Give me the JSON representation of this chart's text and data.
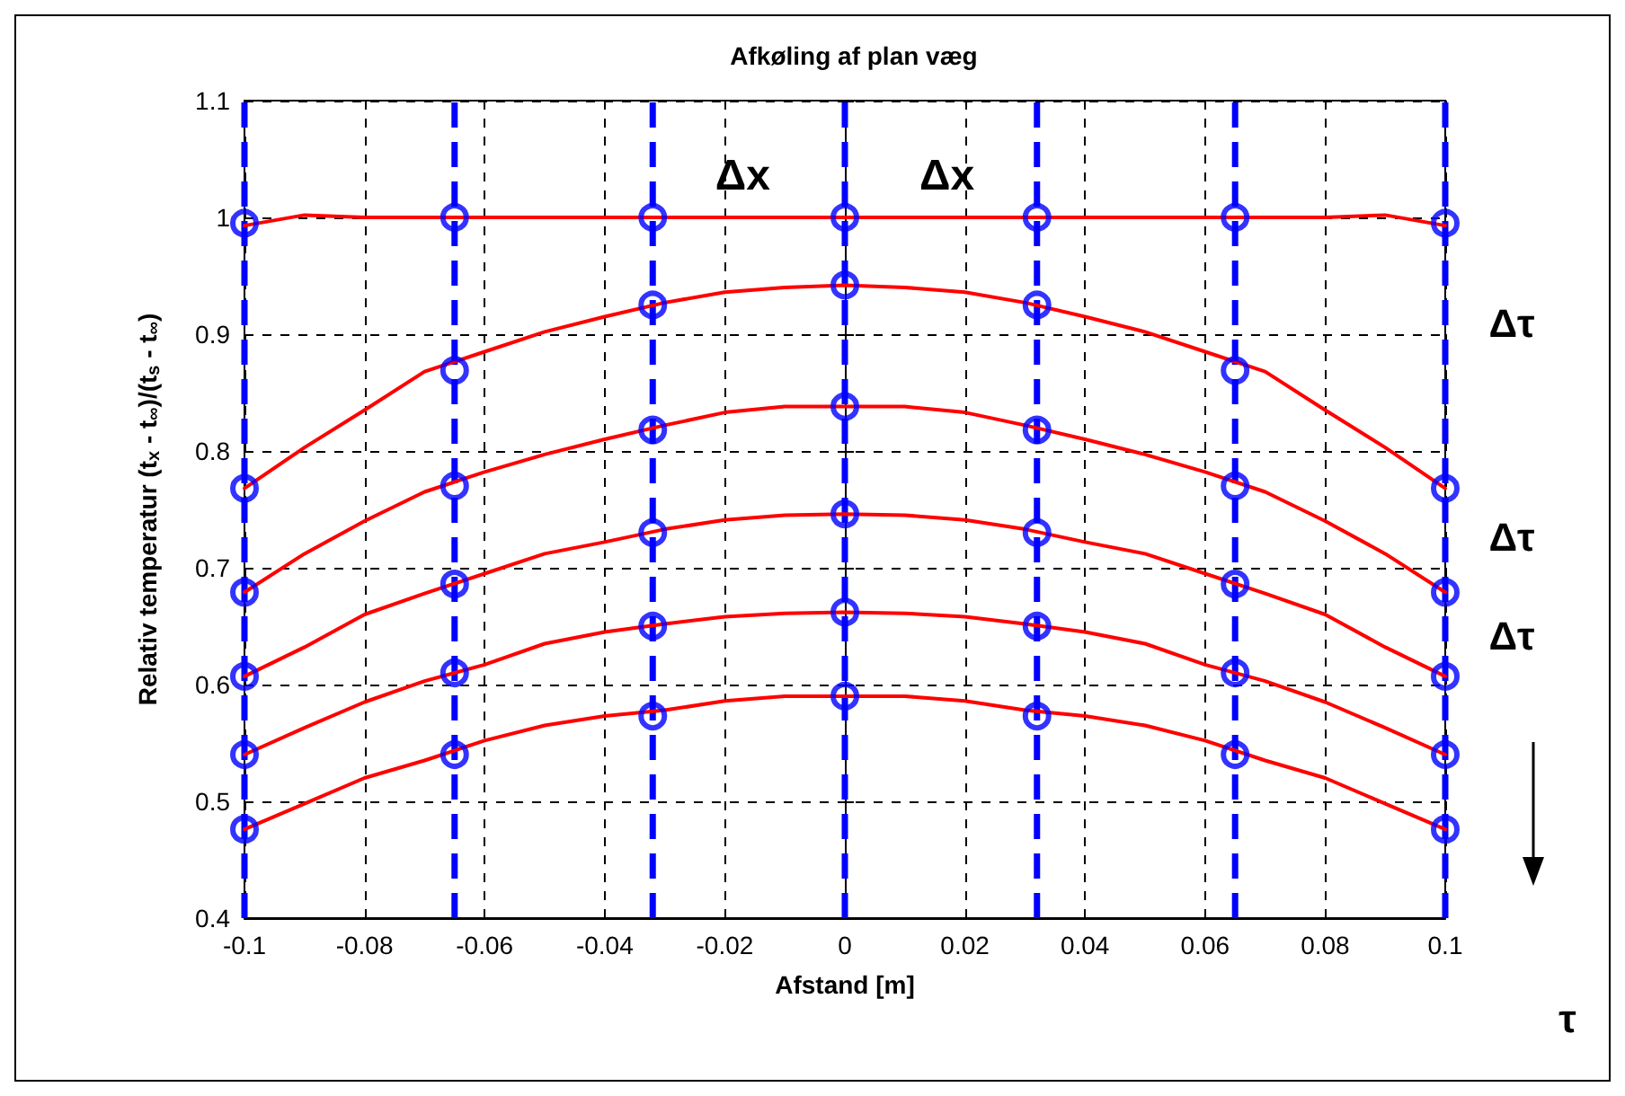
{
  "chart_data": {
    "type": "line",
    "title": "Afkøling af plan væg",
    "xlabel": "Afstand [m]",
    "ylabel": "Relativ temperatur (t$_{x}$ - t$_{∞}$)/(t$_{s}$ - t$_{∞}$)",
    "x": [
      -0.1,
      -0.09,
      -0.08,
      -0.07,
      -0.06,
      -0.05,
      -0.04,
      -0.03,
      -0.02,
      -0.01,
      0,
      0.01,
      0.02,
      0.03,
      0.04,
      0.05,
      0.06,
      0.07,
      0.08,
      0.09,
      0.1
    ],
    "series": [
      {
        "color": "#ff0000",
        "values": [
          0.993,
          1.002,
          1.0,
          1.0,
          1.0,
          1.0,
          1.0,
          1.0,
          1.0,
          1.0,
          1.0,
          1.0,
          1.0,
          1.0,
          1.0,
          1.0,
          1.0,
          1.0,
          1.0,
          1.002,
          0.993
        ]
      },
      {
        "color": "#ff0000",
        "values": [
          0.768,
          0.803,
          0.835,
          0.868,
          0.885,
          0.902,
          0.915,
          0.927,
          0.936,
          0.94,
          0.942,
          0.94,
          0.936,
          0.927,
          0.915,
          0.902,
          0.885,
          0.868,
          0.835,
          0.803,
          0.768
        ]
      },
      {
        "color": "#ff0000",
        "values": [
          0.679,
          0.712,
          0.74,
          0.765,
          0.782,
          0.797,
          0.81,
          0.822,
          0.833,
          0.838,
          0.838,
          0.838,
          0.833,
          0.822,
          0.81,
          0.797,
          0.782,
          0.765,
          0.74,
          0.712,
          0.679
        ]
      },
      {
        "color": "#ff0000",
        "values": [
          0.607,
          0.632,
          0.66,
          0.678,
          0.695,
          0.712,
          0.722,
          0.733,
          0.741,
          0.745,
          0.746,
          0.745,
          0.741,
          0.733,
          0.722,
          0.712,
          0.695,
          0.678,
          0.66,
          0.632,
          0.607
        ]
      },
      {
        "color": "#ff0000",
        "values": [
          0.54,
          0.563,
          0.585,
          0.603,
          0.617,
          0.635,
          0.645,
          0.652,
          0.658,
          0.661,
          0.662,
          0.661,
          0.658,
          0.652,
          0.645,
          0.635,
          0.617,
          0.603,
          0.585,
          0.563,
          0.54
        ]
      },
      {
        "color": "#ff0000",
        "values": [
          0.476,
          0.498,
          0.52,
          0.535,
          0.552,
          0.565,
          0.573,
          0.578,
          0.586,
          0.59,
          0.59,
          0.59,
          0.586,
          0.578,
          0.573,
          0.565,
          0.552,
          0.535,
          0.52,
          0.498,
          0.476
        ]
      },
      {
        "type": "scatter",
        "color": "#0000ff",
        "marker": "circle",
        "x": [
          -0.1,
          -0.065,
          -0.032,
          0,
          0.032,
          0.065,
          0.1,
          -0.1,
          -0.065,
          -0.032,
          0,
          0.032,
          0.065,
          0.1,
          -0.1,
          -0.065,
          -0.032,
          0,
          0.032,
          0.065,
          0.1,
          -0.1,
          -0.065,
          -0.032,
          0,
          0.032,
          0.065,
          0.1,
          -0.1,
          -0.065,
          -0.032,
          0,
          0.032,
          0.065,
          0.1,
          -0.1,
          -0.065,
          -0.032,
          0,
          0.032,
          0.065,
          0.1
        ],
        "values": [
          0.995,
          1.0,
          1.0,
          1.0,
          1.0,
          1.0,
          0.995,
          0.768,
          0.869,
          0.925,
          0.942,
          0.925,
          0.869,
          0.768,
          0.679,
          0.77,
          0.818,
          0.838,
          0.818,
          0.77,
          0.679,
          0.607,
          0.686,
          0.73,
          0.746,
          0.73,
          0.686,
          0.607,
          0.54,
          0.61,
          0.65,
          0.662,
          0.65,
          0.61,
          0.54,
          0.476,
          0.54,
          0.573,
          0.59,
          0.573,
          0.54,
          0.476
        ]
      }
    ],
    "ref_lines": [
      {
        "axis": "x",
        "value": -0.1,
        "color": "#0000ff",
        "line_style": "dashed"
      },
      {
        "axis": "x",
        "value": -0.065,
        "color": "#0000ff",
        "line_style": "dashed"
      },
      {
        "axis": "x",
        "value": -0.032,
        "color": "#0000ff",
        "line_style": "dashed"
      },
      {
        "axis": "x",
        "value": 0,
        "color": "#0000ff",
        "line_style": "dashed"
      },
      {
        "axis": "x",
        "value": 0.032,
        "color": "#0000ff",
        "line_style": "dashed"
      },
      {
        "axis": "x",
        "value": 0.065,
        "color": "#0000ff",
        "line_style": "dashed"
      },
      {
        "axis": "x",
        "value": 0.1,
        "color": "#0000ff",
        "line_style": "dashed"
      }
    ],
    "annotations": [
      "Δx",
      "Δx",
      "Δτ",
      "Δτ",
      "Δτ",
      "τ"
    ],
    "xlim": [
      -0.1,
      0.1
    ],
    "xticks": [
      -0.1,
      -0.08,
      -0.06,
      -0.04,
      -0.02,
      0,
      0.02,
      0.04,
      0.06,
      0.08,
      0.1
    ],
    "ylim": [
      0.4,
      1.1
    ],
    "yticks": [
      0.4,
      0.5,
      0.6,
      0.7,
      0.8,
      0.9,
      1,
      1.1
    ],
    "grid": true,
    "marker": "none",
    "line_style": "solid"
  }
}
